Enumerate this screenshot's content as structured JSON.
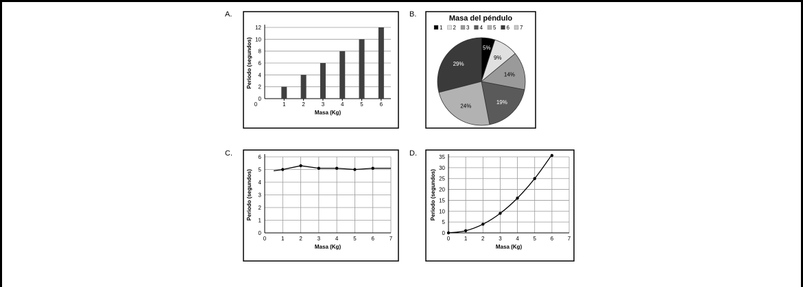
{
  "chart_data": [
    {
      "id": "A",
      "panel_label": "A.",
      "type": "bar",
      "categories": [
        "1",
        "2",
        "3",
        "4",
        "5",
        "6"
      ],
      "values": [
        2,
        4,
        6,
        8,
        10,
        12
      ],
      "xlabel": "Masa (Kg)",
      "ylabel": "Periodo (segundos)",
      "ylim": [
        0,
        12
      ],
      "yticks": [
        0,
        2,
        4,
        6,
        8,
        10,
        12
      ],
      "x_origin_label": "0",
      "grid": true,
      "bar_color": "#404040"
    },
    {
      "id": "B",
      "panel_label": "B.",
      "type": "pie",
      "title": "Masa del péndulo",
      "categories": [
        "1",
        "2",
        "3",
        "4",
        "5",
        "6",
        "7"
      ],
      "values": [
        5,
        9,
        14,
        19,
        24,
        29,
        0
      ],
      "value_labels": [
        "5%",
        "9%",
        "14%",
        "19%",
        "24%",
        "29%",
        ""
      ],
      "colors": [
        "#000000",
        "#e0e0e0",
        "#9a9a9a",
        "#5a5a5a",
        "#b2b2b2",
        "#3a3a3a",
        "#c8c8c8"
      ],
      "label_colors": [
        "#ffffff",
        "#000000",
        "#000000",
        "#ffffff",
        "#000000",
        "#ffffff",
        "#000000"
      ],
      "legend": "top"
    },
    {
      "id": "C",
      "panel_label": "C.",
      "type": "line",
      "x": [
        1,
        2,
        3,
        4,
        5,
        6
      ],
      "y": [
        5,
        5.3,
        5.1,
        5.1,
        5,
        5.1
      ],
      "line_x": [
        0.5,
        1,
        2,
        3,
        4,
        5,
        6,
        7
      ],
      "line_y": [
        4.9,
        5,
        5.3,
        5.1,
        5.1,
        5,
        5.1,
        5.1
      ],
      "xlabel": "Masa (Kg)",
      "ylabel": "Periodo (segundos)",
      "xlim": [
        0,
        7
      ],
      "ylim": [
        0,
        6
      ],
      "xticks": [
        0,
        1,
        2,
        3,
        4,
        5,
        6,
        7
      ],
      "yticks": [
        0,
        1,
        2,
        3,
        4,
        5,
        6
      ],
      "grid": true
    },
    {
      "id": "D",
      "panel_label": "D.",
      "type": "line",
      "x": [
        0,
        1,
        2,
        3,
        4,
        5,
        6
      ],
      "y": [
        0,
        1,
        4,
        9,
        16,
        25,
        36
      ],
      "xlabel": "Masa (Kg)",
      "ylabel": "Periodo (segundos)",
      "xlim": [
        0,
        7
      ],
      "ylim": [
        0,
        35
      ],
      "xticks": [
        0,
        1,
        2,
        3,
        4,
        5,
        6,
        7
      ],
      "yticks": [
        0,
        5,
        10,
        15,
        20,
        25,
        30,
        35
      ],
      "grid": true
    }
  ]
}
